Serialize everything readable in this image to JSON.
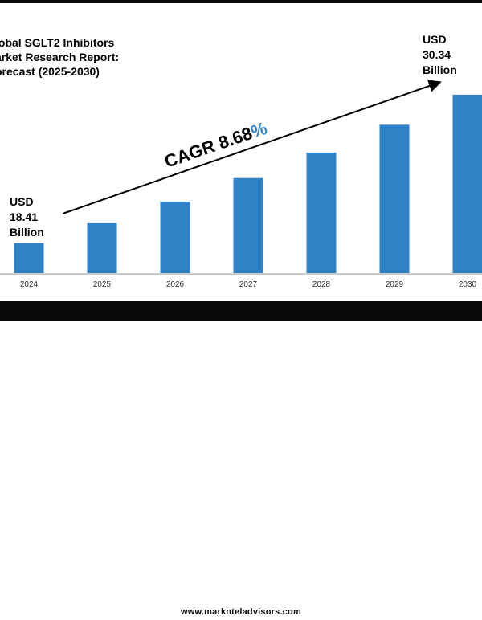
{
  "title_lines": [
    "lobal SGLT2 Inhibitors",
    "arket Research Report:",
    "orecast (2025-2030)"
  ],
  "start_label": {
    "currency": "USD",
    "value": "18.41",
    "unit": "Billion"
  },
  "end_label": {
    "currency": "USD",
    "value": "30.34",
    "unit": "Billion"
  },
  "cagr": {
    "text": "CAGR 8.68",
    "pct": "%"
  },
  "footer": "www.marknteladvisors.com",
  "colors": {
    "bar": "#2f82c5",
    "pct": "#2f82c5",
    "text": "#000000",
    "axis": "#999999"
  },
  "chart_data": {
    "type": "bar",
    "categories": [
      "2024",
      "2025",
      "2026",
      "2027",
      "2028",
      "2029",
      "2030"
    ],
    "values": [
      18.41,
      20.01,
      21.75,
      23.64,
      25.69,
      27.92,
      30.34
    ],
    "unit": "USD Billion",
    "ylim": [
      16,
      31.3
    ],
    "grid": false,
    "legend": "none",
    "annotation": "CAGR 8.68%"
  }
}
